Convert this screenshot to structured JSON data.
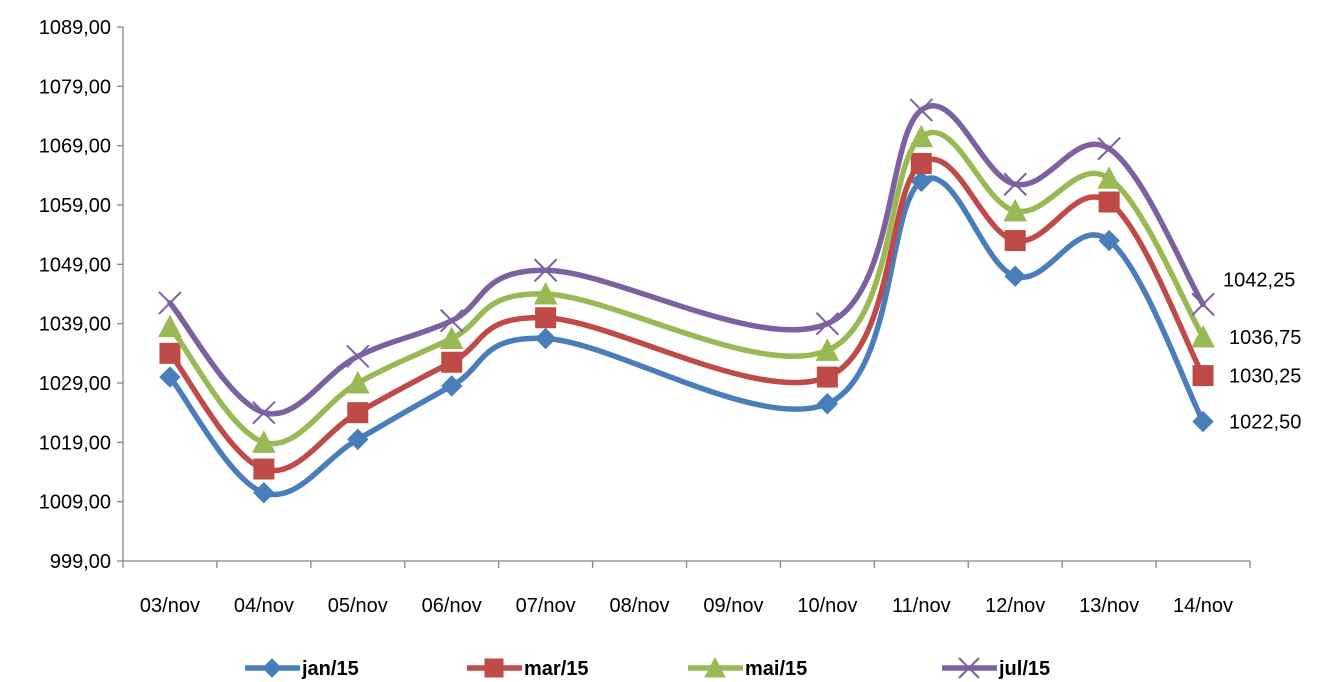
{
  "chart_data": {
    "type": "line",
    "categories": [
      "03/nov",
      "04/nov",
      "05/nov",
      "06/nov",
      "07/nov",
      "08/nov",
      "09/nov",
      "10/nov",
      "11/nov",
      "12/nov",
      "13/nov",
      "14/nov"
    ],
    "y_ticks": [
      "999,00",
      "1009,00",
      "1019,00",
      "1029,00",
      "1039,00",
      "1049,00",
      "1059,00",
      "1069,00",
      "1079,00",
      "1089,00"
    ],
    "ylim": [
      999,
      1089
    ],
    "grid": false,
    "legend_position": "bottom",
    "series": [
      {
        "name": "jan/15",
        "color": "#4A7EBB",
        "marker": "diamond",
        "values": [
          1030.0,
          1010.5,
          1019.5,
          1028.5,
          1036.5,
          null,
          null,
          1025.5,
          1063.0,
          1047.0,
          1053.0,
          1022.5
        ],
        "end_label": "1022,50"
      },
      {
        "name": "mar/15",
        "color": "#BE4B48",
        "marker": "square",
        "values": [
          1034.0,
          1014.5,
          1024.0,
          1032.5,
          1040.0,
          null,
          null,
          1030.0,
          1066.0,
          1053.0,
          1059.5,
          1030.25
        ],
        "end_label": "1030,25"
      },
      {
        "name": "mai/15",
        "color": "#98B954",
        "marker": "triangle",
        "values": [
          1038.5,
          1019.0,
          1029.0,
          1036.5,
          1044.0,
          null,
          null,
          1034.5,
          1070.5,
          1058.0,
          1063.5,
          1036.75
        ],
        "end_label": "1036,75"
      },
      {
        "name": "jul/15",
        "color": "#7D60A0",
        "marker": "x",
        "values": [
          1042.5,
          1024.0,
          1033.5,
          1039.5,
          1048.0,
          null,
          null,
          1039.0,
          1075.0,
          1062.5,
          1068.5,
          1042.25
        ],
        "end_label": "1042,25"
      }
    ]
  }
}
